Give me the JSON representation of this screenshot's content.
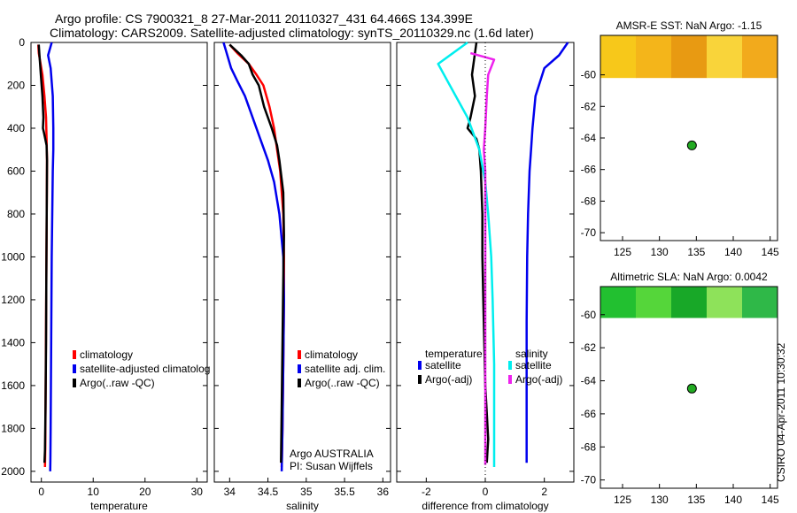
{
  "header": {
    "title_line1": "Argo profile: CS 7900321_8 27-Mar-2011 20110327_431 64.466S 134.399E",
    "title_line2": "Climatology: CARS2009. Satellite-adjusted climatology: synTS_20110329.nc (1.6d later)"
  },
  "footer": {
    "credit": "CSIRO 04-Apr-2011 10:30:32",
    "argo_line1": "Argo AUSTRALIA",
    "argo_line2": "PI: Susan Wijffels"
  },
  "colors": {
    "climatology": "#ff0000",
    "satellite": "#0000ee",
    "argo": "#000000",
    "sal_satellite": "#00eeee",
    "sal_argo": "#ee22ee",
    "float_marker": "#22aa22"
  },
  "chart_data": [
    {
      "type": "line",
      "id": "temperature",
      "xlabel": "temperature",
      "ylabel": "",
      "xlim": [
        -2,
        32
      ],
      "ylim": [
        2050,
        0
      ],
      "xticks": [
        0,
        10,
        20,
        30
      ],
      "yticks": [
        0,
        200,
        400,
        600,
        800,
        1000,
        1200,
        1400,
        1600,
        1800,
        2000
      ],
      "legend": [
        "climatology",
        "satellite-adjusted climatolog",
        "Argo(..raw -QC)"
      ],
      "series": [
        {
          "name": "climatology",
          "color": "#ff0000",
          "x": [
            -0.6,
            -0.5,
            0.2,
            0.6,
            0.9,
            1.0,
            1.1,
            1.05,
            1.0,
            0.95,
            0.9,
            0.85,
            0.8,
            0.75,
            0.7
          ],
          "y": [
            10,
            50,
            150,
            250,
            350,
            450,
            550,
            700,
            900,
            1100,
            1300,
            1500,
            1700,
            1900,
            1980
          ]
        },
        {
          "name": "satellite-adjusted climatology",
          "color": "#0000ee",
          "x": [
            2.0,
            1.3,
            1.8,
            2.2,
            2.3,
            2.3,
            2.2,
            2.1,
            2.0,
            1.95,
            1.9,
            1.85,
            1.8,
            1.75,
            1.7
          ],
          "y": [
            0,
            60,
            120,
            250,
            400,
            500,
            600,
            800,
            1000,
            1200,
            1400,
            1600,
            1800,
            1950,
            2000
          ]
        },
        {
          "name": "Argo(..raw -QC)",
          "color": "#000000",
          "x": [
            -0.5,
            -0.4,
            -0.1,
            0.2,
            0.4,
            0.3,
            0.5,
            1.0,
            1.1,
            1.05,
            1.0,
            0.95,
            0.9,
            0.8,
            0.7,
            0.6
          ],
          "y": [
            10,
            50,
            150,
            250,
            350,
            400,
            420,
            480,
            550,
            700,
            900,
            1100,
            1400,
            1700,
            1900,
            1960
          ]
        }
      ]
    },
    {
      "type": "line",
      "id": "salinity",
      "xlabel": "salinity",
      "ylabel": "",
      "xlim": [
        33.8,
        36.1
      ],
      "ylim": [
        2050,
        0
      ],
      "xticks": [
        34,
        34.5,
        35,
        35.5,
        36
      ],
      "yticks": [
        0,
        200,
        400,
        600,
        800,
        1000,
        1200,
        1400,
        1600,
        1800,
        2000
      ],
      "legend": [
        "climatology",
        "satellite adj. clim.",
        "Argo(..raw -QC)"
      ],
      "series": [
        {
          "name": "climatology",
          "color": "#ff0000",
          "x": [
            34.0,
            34.1,
            34.25,
            34.35,
            34.44,
            34.52,
            34.58,
            34.62,
            34.66,
            34.7,
            34.71,
            34.71,
            34.7,
            34.69,
            34.68
          ],
          "y": [
            10,
            50,
            100,
            150,
            200,
            300,
            400,
            500,
            600,
            800,
            1000,
            1200,
            1500,
            1800,
            1980
          ]
        },
        {
          "name": "satellite adj. clim.",
          "color": "#0000ee",
          "x": [
            33.92,
            33.97,
            34.02,
            34.1,
            34.2,
            34.3,
            34.4,
            34.5,
            34.58,
            34.65,
            34.7,
            34.71,
            34.7,
            34.69,
            34.68
          ],
          "y": [
            0,
            60,
            120,
            180,
            250,
            350,
            450,
            550,
            650,
            800,
            1000,
            1200,
            1500,
            1800,
            2000
          ]
        },
        {
          "name": "Argo(..raw -QC)",
          "color": "#000000",
          "x": [
            34.0,
            34.15,
            34.25,
            34.3,
            34.38,
            34.45,
            34.55,
            34.62,
            34.65,
            34.7,
            34.71,
            34.7,
            34.69,
            34.68,
            34.67
          ],
          "y": [
            10,
            60,
            100,
            150,
            200,
            300,
            400,
            480,
            550,
            700,
            900,
            1100,
            1400,
            1700,
            1960
          ]
        }
      ]
    },
    {
      "type": "line",
      "id": "difference",
      "xlabel": "difference from climatology",
      "ylabel": "",
      "xlim": [
        -3,
        3
      ],
      "ylim": [
        2050,
        0
      ],
      "xticks": [
        -2,
        0,
        2
      ],
      "yticks": [
        0,
        200,
        400,
        600,
        800,
        1000,
        1200,
        1400,
        1600,
        1800,
        2000
      ],
      "legend_titles": [
        "temperature",
        "salinity"
      ],
      "legend_left": [
        "satellite",
        "Argo(-adj)"
      ],
      "legend_right": [
        "satellite",
        "Argo(-adj)"
      ],
      "series": [
        {
          "name": "temperature satellite",
          "color": "#0000ee",
          "x": [
            2.8,
            2.5,
            2.0,
            1.7,
            1.6,
            1.55,
            1.5,
            1.45,
            1.42,
            1.4,
            1.4,
            1.4,
            1.4
          ],
          "y": [
            0,
            60,
            120,
            250,
            400,
            500,
            600,
            800,
            1000,
            1300,
            1600,
            1800,
            1960
          ]
        },
        {
          "name": "temperature Argo(-adj)",
          "color": "#000000",
          "x": [
            -0.3,
            -0.45,
            -0.35,
            -0.5,
            -0.6,
            -0.3,
            -0.2,
            -0.15,
            -0.1,
            -0.1,
            -0.05,
            0,
            0.1,
            0.05
          ],
          "y": [
            0,
            150,
            250,
            350,
            400,
            450,
            500,
            600,
            800,
            1000,
            1300,
            1600,
            1850,
            1960
          ]
        },
        {
          "name": "salinity satellite",
          "color": "#00eeee",
          "x": [
            -0.6,
            -1.6,
            -1.2,
            -0.6,
            -0.2,
            0.0,
            0.1,
            0.2,
            0.25,
            0.3,
            0.3,
            0.3
          ],
          "y": [
            0,
            100,
            200,
            350,
            500,
            650,
            800,
            1000,
            1200,
            1500,
            1800,
            1980
          ]
        },
        {
          "name": "salinity Argo(-adj)",
          "color": "#ee22ee",
          "x": [
            -0.5,
            0.3,
            0.1,
            0.05,
            0.0,
            -0.05,
            0.0,
            0.0,
            0.0
          ],
          "y": [
            50,
            80,
            150,
            250,
            400,
            500,
            600,
            1700,
            1970
          ]
        }
      ]
    },
    {
      "type": "heatmap",
      "id": "amsr_map",
      "title": "AMSR-E SST: NaN Argo: -1.15",
      "xlim": [
        122,
        146
      ],
      "ylim": [
        -70.5,
        -57.5
      ],
      "xticks": [
        125,
        130,
        135,
        140,
        145
      ],
      "yticks": [
        -60,
        -62,
        -64,
        -66,
        -68,
        -70
      ],
      "data_band_lat": [
        -57.5,
        -60.2
      ],
      "band_colors": [
        "#f7c81a",
        "#f4b51a",
        "#e89a12",
        "#f9d43a",
        "#f2aa1c"
      ],
      "float_position": {
        "lon": 134.4,
        "lat": -64.47
      }
    },
    {
      "type": "heatmap",
      "id": "sla_map",
      "title": "Altimetric SLA: NaN Argo: 0.0042",
      "xlim": [
        122,
        146
      ],
      "ylim": [
        -70.5,
        -58.3
      ],
      "xticks": [
        125,
        130,
        135,
        140,
        145
      ],
      "yticks": [
        -60,
        -62,
        -64,
        -66,
        -68,
        -70
      ],
      "data_band_lat": [
        -58.3,
        -60.2
      ],
      "band_colors": [
        "#22c030",
        "#55d63a",
        "#18a828",
        "#8ee25a",
        "#2fb848"
      ],
      "float_position": {
        "lon": 134.4,
        "lat": -64.47
      }
    }
  ]
}
